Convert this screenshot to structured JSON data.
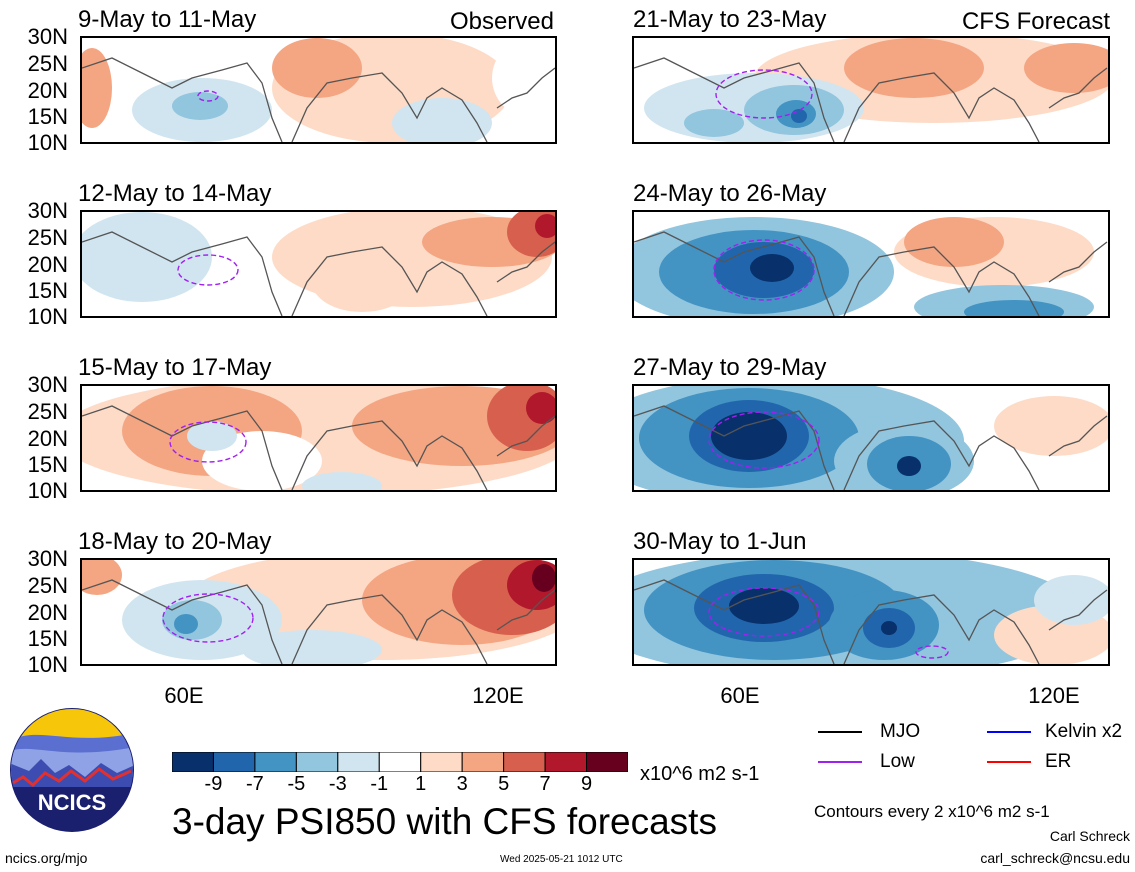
{
  "panels": [
    {
      "title": "9-May to 11-May",
      "tag": "Observed",
      "key": "obs1"
    },
    {
      "title": "12-May to 14-May",
      "tag": "",
      "key": "obs2"
    },
    {
      "title": "15-May to 17-May",
      "tag": "",
      "key": "obs3"
    },
    {
      "title": "18-May to 20-May",
      "tag": "",
      "key": "obs4"
    },
    {
      "title": "21-May to 23-May",
      "tag": "CFS Forecast",
      "key": "fc1"
    },
    {
      "title": "24-May to 26-May",
      "tag": "",
      "key": "fc2"
    },
    {
      "title": "27-May to 29-May",
      "tag": "",
      "key": "fc3"
    },
    {
      "title": "30-May to 1-Jun",
      "tag": "",
      "key": "fc4"
    }
  ],
  "lat_labels": [
    "30N",
    "25N",
    "20N",
    "15N",
    "10N"
  ],
  "lon_labels": [
    "60E",
    "120E"
  ],
  "colorbar": {
    "labels": [
      "-9",
      "-7",
      "-5",
      "-3",
      "-1",
      "1",
      "3",
      "5",
      "7",
      "9"
    ],
    "colors": [
      "#08306b",
      "#2166ac",
      "#4393c3",
      "#92c5de",
      "#d1e5f0",
      "#ffffff",
      "#fddbc7",
      "#f4a582",
      "#d6604d",
      "#b2182b",
      "#67001f"
    ],
    "units": "x10^6 m2 s-1"
  },
  "legend": {
    "items": [
      {
        "label": "MJO",
        "color": "#000000"
      },
      {
        "label": "Kelvin x2",
        "color": "#0000ff"
      },
      {
        "label": "Low",
        "color": "#a020f0"
      },
      {
        "label": "ER",
        "color": "#ff0000"
      }
    ],
    "contour_note": "Contours every 2 x10^6 m2 s-1"
  },
  "logo_text": "NCICS",
  "main_title": "3-day PSI850 with CFS forecasts",
  "footer": {
    "url": "ncics.org/mjo",
    "timestamp": "Wed 2025-05-21 1012 UTC",
    "author": "Carl Schreck",
    "email": "carl_schreck@ncsu.edu"
  }
}
